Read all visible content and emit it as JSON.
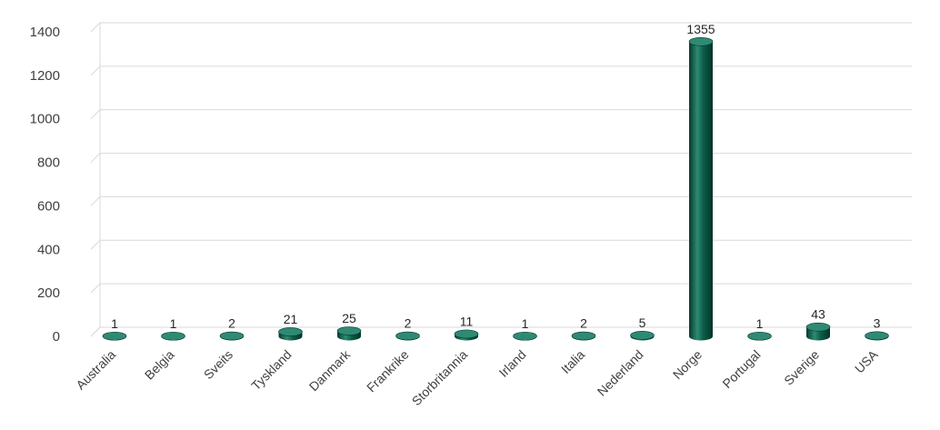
{
  "chart_data": {
    "type": "bar",
    "categories": [
      "Australia",
      "Belgia",
      "Sveits",
      "Tyskland",
      "Danmark",
      "Frankrike",
      "Storbritannia",
      "Irland",
      "Italia",
      "Nederland",
      "Norge",
      "Portugal",
      "Sverige",
      "USA"
    ],
    "values": [
      1,
      1,
      2,
      21,
      25,
      2,
      11,
      1,
      2,
      5,
      1355,
      1,
      43,
      3
    ],
    "data_labels": [
      "1",
      "1",
      "2",
      "21",
      "25",
      "2",
      "11",
      "1",
      "2",
      "5",
      "1355",
      "1",
      "43",
      "3"
    ],
    "y_ticks": [
      "0",
      "200",
      "400",
      "600",
      "800",
      "1000",
      "1200",
      "1400"
    ],
    "ylim": [
      0,
      1400
    ],
    "grid": true,
    "legend": "none",
    "bar_style": "3d-cylinder",
    "colors": {
      "bar": "#0b5e4a",
      "bar_dark": "#063a2d",
      "bar_light": "#2f8a74",
      "grid": "#d9d9d9",
      "text": "#404040"
    }
  }
}
